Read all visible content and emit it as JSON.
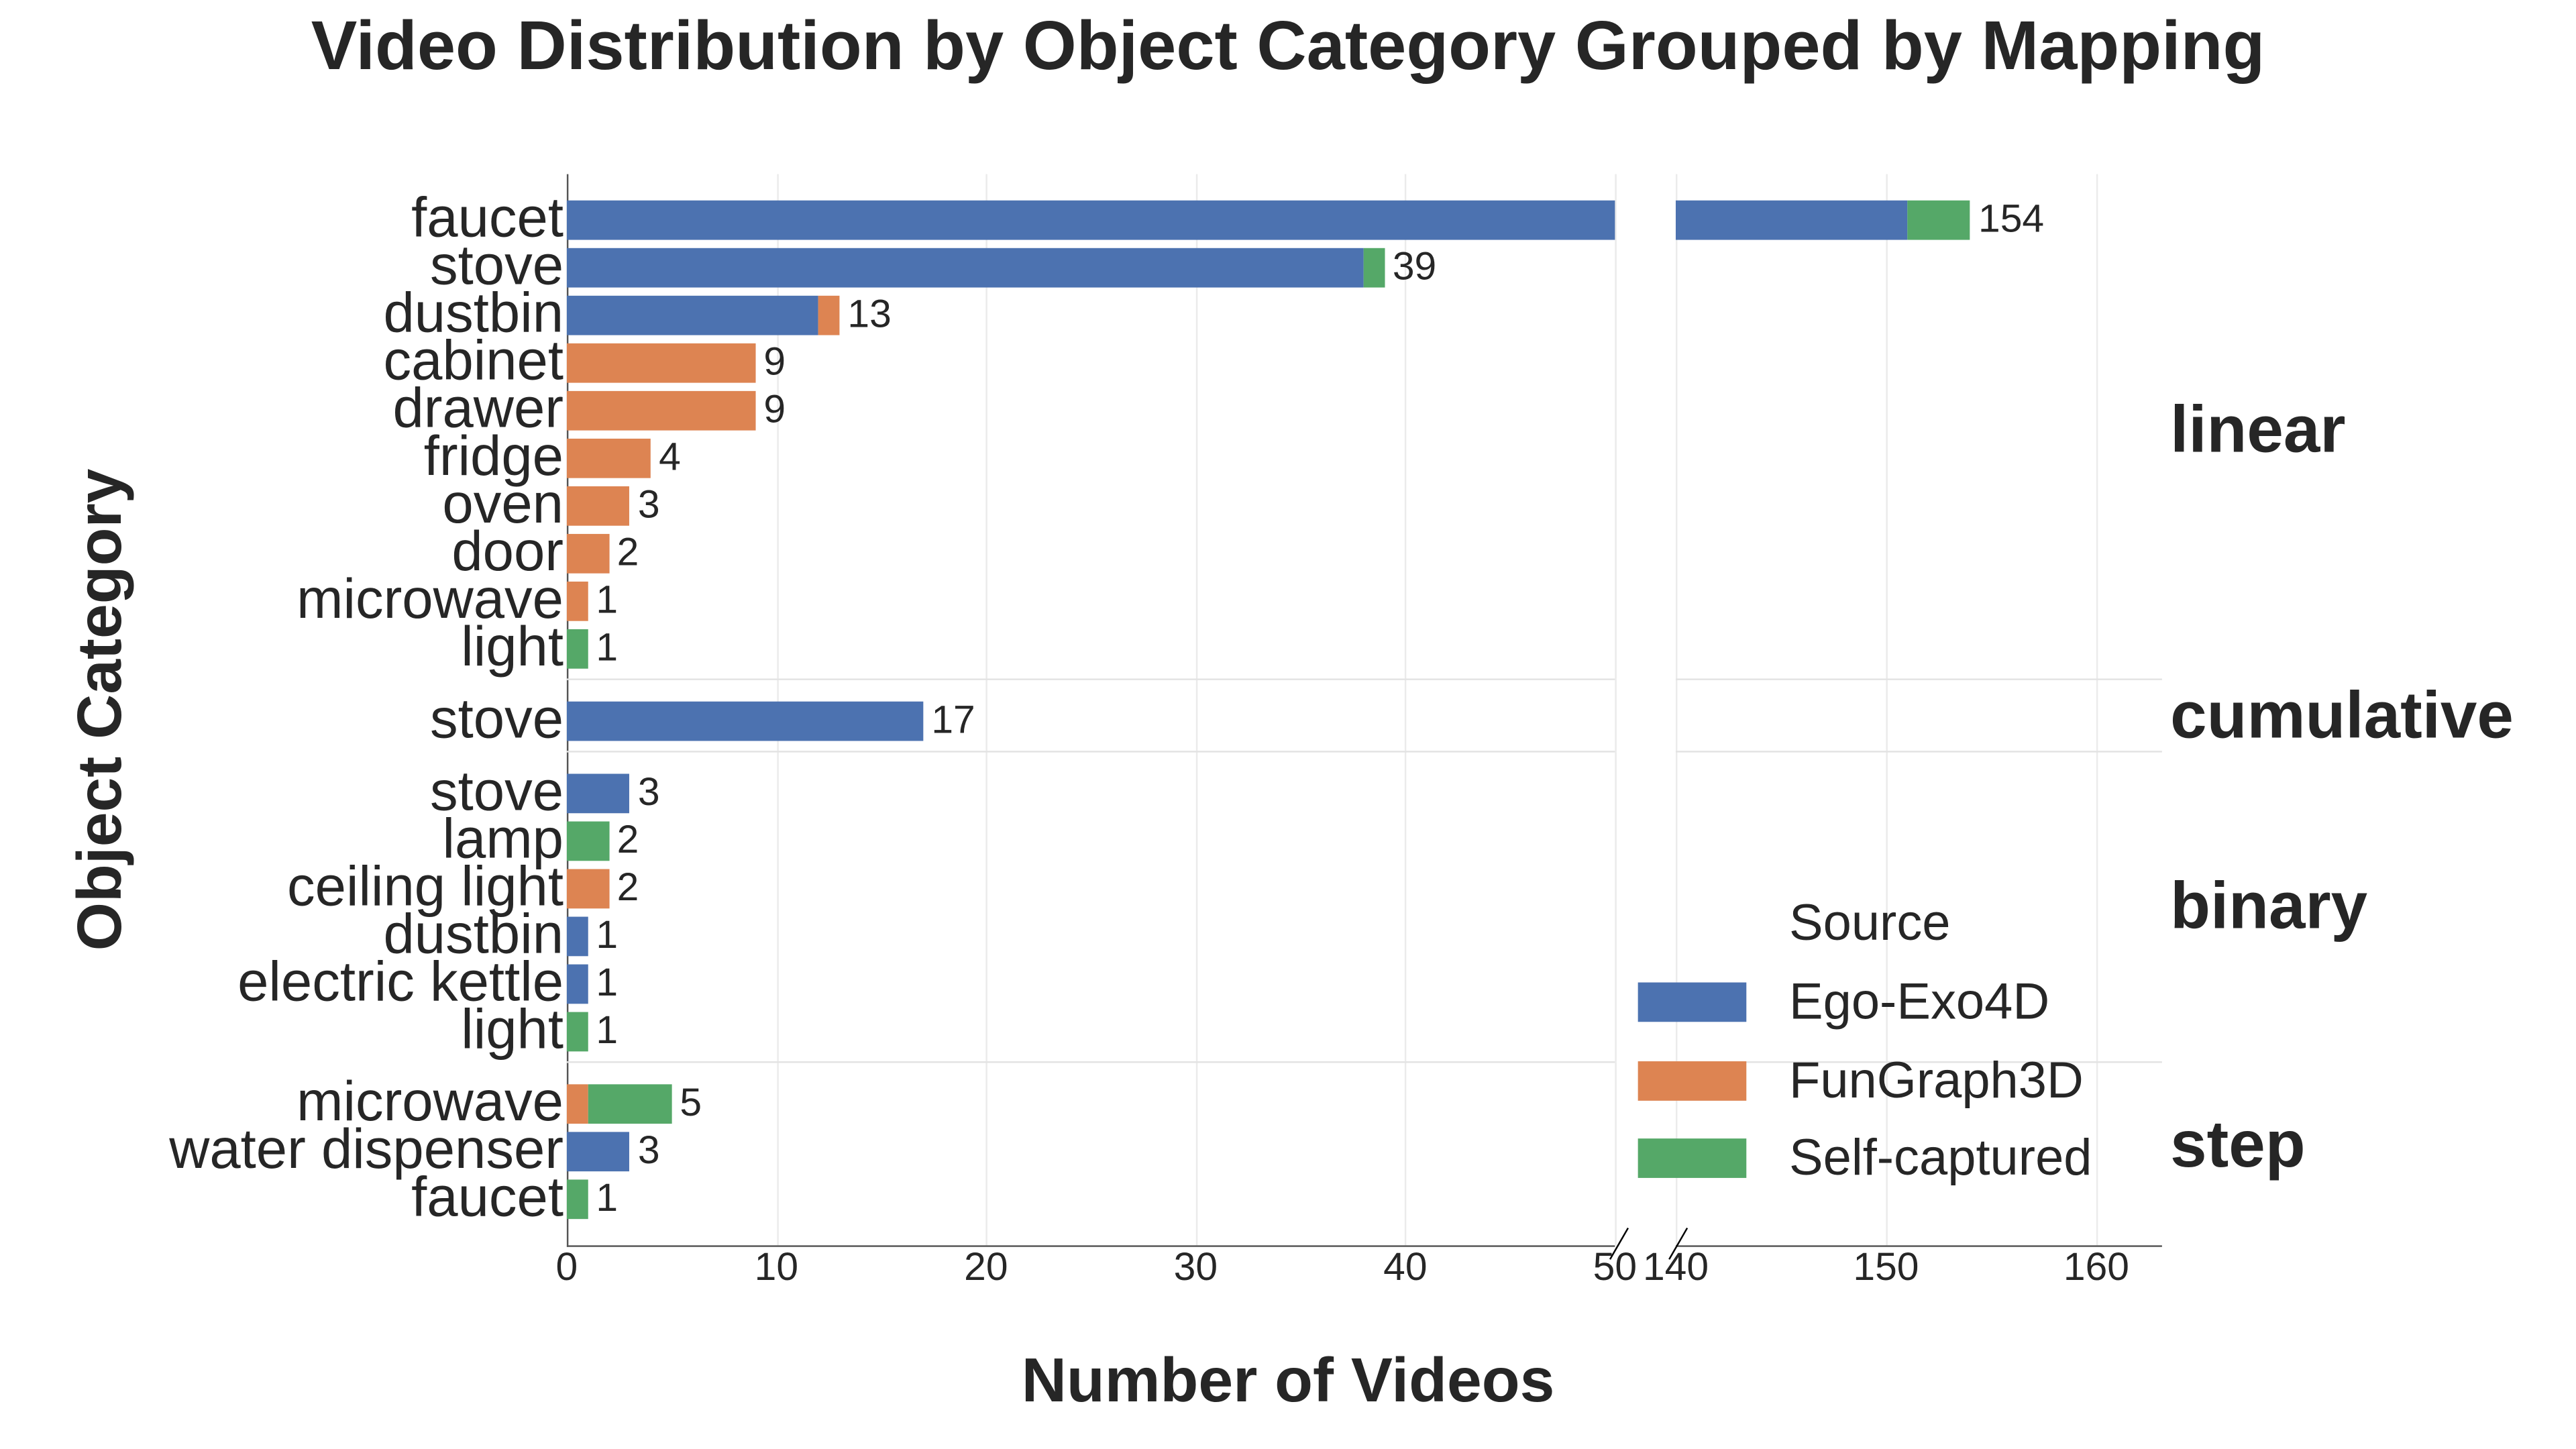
{
  "chart_data": {
    "type": "bar",
    "orientation": "horizontal",
    "stacked": true,
    "title": "Video Distribution by Object Category Grouped by Mapping",
    "xlabel": "Number of Videos",
    "ylabel": "Object Category",
    "broken_x_axis": true,
    "xlim_left": [
      0,
      50
    ],
    "xlim_right": [
      140,
      163
    ],
    "xticks_left": [
      "0",
      "10",
      "20",
      "30",
      "40",
      "50"
    ],
    "xticks_right": [
      "140",
      "150",
      "160"
    ],
    "grid": true,
    "legend": {
      "title": "Source",
      "position": "lower right",
      "entries": [
        "Ego-Exo4D",
        "FunGraph3D",
        "Self-captured"
      ]
    },
    "colors": {
      "Ego-Exo4D": "#4c72b0",
      "FunGraph3D": "#dd8452",
      "Self-captured": "#55a868"
    },
    "series_names": [
      "Ego-Exo4D",
      "FunGraph3D",
      "Self-captured"
    ],
    "groups": [
      {
        "name": "linear",
        "rows": [
          {
            "category": "faucet",
            "Ego-Exo4D": 151,
            "FunGraph3D": 0,
            "Self-captured": 3,
            "total": 154
          },
          {
            "category": "stove",
            "Ego-Exo4D": 38,
            "FunGraph3D": 0,
            "Self-captured": 1,
            "total": 39
          },
          {
            "category": "dustbin",
            "Ego-Exo4D": 12,
            "FunGraph3D": 1,
            "Self-captured": 0,
            "total": 13
          },
          {
            "category": "cabinet",
            "Ego-Exo4D": 0,
            "FunGraph3D": 9,
            "Self-captured": 0,
            "total": 9
          },
          {
            "category": "drawer",
            "Ego-Exo4D": 0,
            "FunGraph3D": 9,
            "Self-captured": 0,
            "total": 9
          },
          {
            "category": "fridge",
            "Ego-Exo4D": 0,
            "FunGraph3D": 4,
            "Self-captured": 0,
            "total": 4
          },
          {
            "category": "oven",
            "Ego-Exo4D": 0,
            "FunGraph3D": 3,
            "Self-captured": 0,
            "total": 3
          },
          {
            "category": "door",
            "Ego-Exo4D": 0,
            "FunGraph3D": 2,
            "Self-captured": 0,
            "total": 2
          },
          {
            "category": "microwave",
            "Ego-Exo4D": 0,
            "FunGraph3D": 1,
            "Self-captured": 0,
            "total": 1
          },
          {
            "category": "light",
            "Ego-Exo4D": 0,
            "FunGraph3D": 0,
            "Self-captured": 1,
            "total": 1
          }
        ]
      },
      {
        "name": "cumulative",
        "rows": [
          {
            "category": "stove",
            "Ego-Exo4D": 17,
            "FunGraph3D": 0,
            "Self-captured": 0,
            "total": 17
          }
        ]
      },
      {
        "name": "binary",
        "rows": [
          {
            "category": "stove",
            "Ego-Exo4D": 3,
            "FunGraph3D": 0,
            "Self-captured": 0,
            "total": 3
          },
          {
            "category": "lamp",
            "Ego-Exo4D": 0,
            "FunGraph3D": 0,
            "Self-captured": 2,
            "total": 2
          },
          {
            "category": "ceiling light",
            "Ego-Exo4D": 0,
            "FunGraph3D": 2,
            "Self-captured": 0,
            "total": 2
          },
          {
            "category": "dustbin",
            "Ego-Exo4D": 1,
            "FunGraph3D": 0,
            "Self-captured": 0,
            "total": 1
          },
          {
            "category": "electric kettle",
            "Ego-Exo4D": 1,
            "FunGraph3D": 0,
            "Self-captured": 0,
            "total": 1
          },
          {
            "category": "light",
            "Ego-Exo4D": 0,
            "FunGraph3D": 0,
            "Self-captured": 1,
            "total": 1
          }
        ]
      },
      {
        "name": "step",
        "rows": [
          {
            "category": "microwave",
            "Ego-Exo4D": 0,
            "FunGraph3D": 1,
            "Self-captured": 4,
            "total": 5
          },
          {
            "category": "water dispenser",
            "Ego-Exo4D": 3,
            "FunGraph3D": 0,
            "Self-captured": 0,
            "total": 3
          },
          {
            "category": "faucet",
            "Ego-Exo4D": 0,
            "FunGraph3D": 0,
            "Self-captured": 1,
            "total": 1
          }
        ]
      }
    ]
  }
}
